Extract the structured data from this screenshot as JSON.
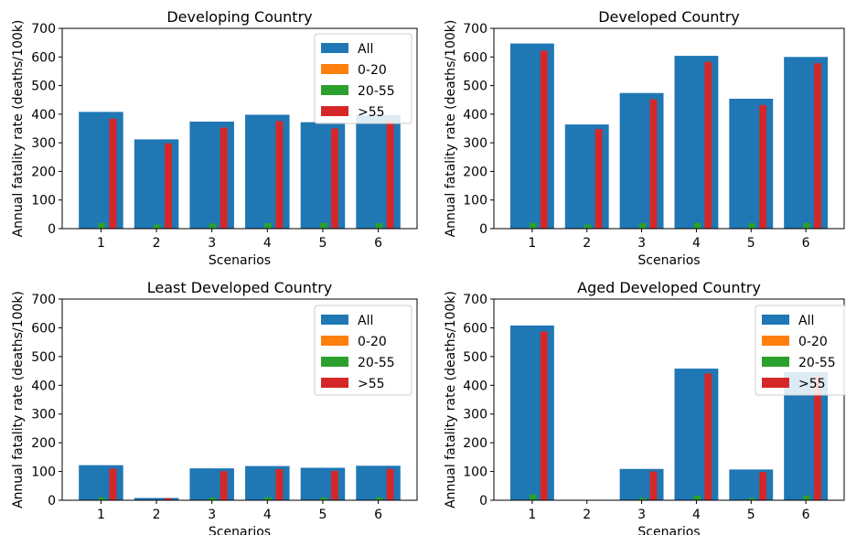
{
  "chart_data": [
    {
      "type": "bar",
      "title": "Developing Country",
      "xlabel": "Scenarios",
      "ylabel": "Annual fatality rate (deaths/100k)",
      "ylim": [
        0,
        700
      ],
      "yticks": [
        0,
        100,
        200,
        300,
        400,
        500,
        600,
        700
      ],
      "categories": [
        "1",
        "2",
        "3",
        "4",
        "5",
        "6"
      ],
      "legend_position": "top-right",
      "series": [
        {
          "name": "All",
          "color": "#1f77b4",
          "values": [
            408,
            312,
            374,
            398,
            372,
            397
          ]
        },
        {
          "name": "0-20",
          "color": "#ff7f0e",
          "values": [
            1,
            1,
            1,
            1,
            1,
            1
          ]
        },
        {
          "name": "20-55",
          "color": "#2ca02c",
          "values": [
            20,
            14,
            18,
            19,
            20,
            19
          ]
        },
        {
          "name": ">55",
          "color": "#d62728",
          "values": [
            384,
            298,
            353,
            376,
            350,
            377
          ]
        }
      ]
    },
    {
      "type": "bar",
      "title": "Developed Country",
      "xlabel": "Scenarios",
      "ylabel": "Annual fatality rate (deaths/100k)",
      "ylim": [
        0,
        700
      ],
      "yticks": [
        0,
        100,
        200,
        300,
        400,
        500,
        600,
        700
      ],
      "categories": [
        "1",
        "2",
        "3",
        "4",
        "5",
        "6"
      ],
      "legend_position": "none",
      "series": [
        {
          "name": "All",
          "color": "#1f77b4",
          "values": [
            647,
            364,
            474,
            604,
            454,
            600
          ]
        },
        {
          "name": "0-20",
          "color": "#ff7f0e",
          "values": [
            1,
            1,
            1,
            1,
            1,
            1
          ]
        },
        {
          "name": "20-55",
          "color": "#2ca02c",
          "values": [
            20,
            14,
            19,
            20,
            19,
            20
          ]
        },
        {
          "name": ">55",
          "color": "#d62728",
          "values": [
            622,
            348,
            452,
            583,
            432,
            578
          ]
        }
      ]
    },
    {
      "type": "bar",
      "title": "Least Developed Country",
      "xlabel": "Scenarios",
      "ylabel": "Annual fatality rate (deaths/100k)",
      "ylim": [
        0,
        700
      ],
      "yticks": [
        0,
        100,
        200,
        300,
        400,
        500,
        600,
        700
      ],
      "categories": [
        "1",
        "2",
        "3",
        "4",
        "5",
        "6"
      ],
      "legend_position": "top-right",
      "series": [
        {
          "name": "All",
          "color": "#1f77b4",
          "values": [
            122,
            8,
            111,
            119,
            113,
            120
          ]
        },
        {
          "name": "0-20",
          "color": "#ff7f0e",
          "values": [
            1,
            0,
            1,
            1,
            1,
            1
          ]
        },
        {
          "name": "20-55",
          "color": "#2ca02c",
          "values": [
            10,
            1,
            9,
            10,
            9,
            10
          ]
        },
        {
          "name": ">55",
          "color": "#d62728",
          "values": [
            110,
            7,
            101,
            108,
            102,
            109
          ]
        }
      ]
    },
    {
      "type": "bar",
      "title": "Aged Developed Country",
      "xlabel": "Scenarios",
      "ylabel": "Annual fatality rate (deaths/100k)",
      "ylim": [
        0,
        700
      ],
      "yticks": [
        0,
        100,
        200,
        300,
        400,
        500,
        600,
        700
      ],
      "categories": [
        "1",
        "2",
        "3",
        "4",
        "5",
        "6"
      ],
      "legend_position": "top-right",
      "series": [
        {
          "name": "All",
          "color": "#1f77b4",
          "values": [
            608,
            0,
            109,
            458,
            107,
            446
          ]
        },
        {
          "name": "0-20",
          "color": "#ff7f0e",
          "values": [
            1,
            0,
            1,
            1,
            1,
            1
          ]
        },
        {
          "name": "20-55",
          "color": "#2ca02c",
          "values": [
            20,
            0,
            8,
            16,
            8,
            16
          ]
        },
        {
          "name": ">55",
          "color": "#d62728",
          "values": [
            587,
            0,
            100,
            441,
            98,
            429
          ]
        }
      ]
    }
  ]
}
